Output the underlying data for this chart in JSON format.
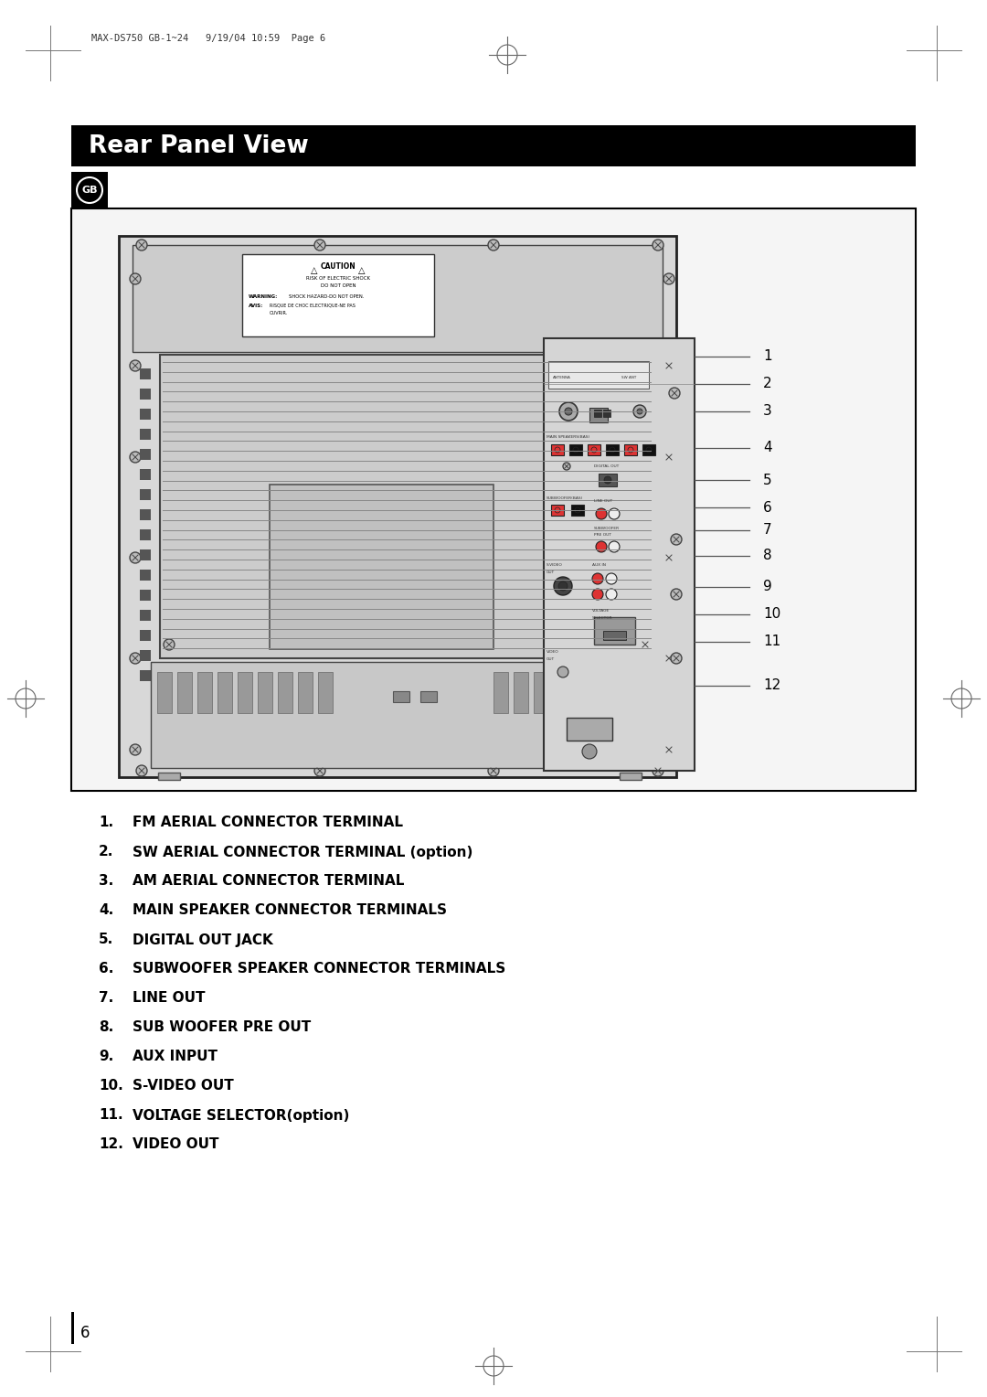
{
  "page_header": "MAX-DS750 GB-1~24   9/19/04 10:59  Page 6",
  "title": "Rear Panel View",
  "gb_label": "GB",
  "items": [
    {
      "num": "1.",
      "text": "FM AERIAL CONNECTOR TERMINAL",
      "extra": ""
    },
    {
      "num": "2.",
      "text": "SW AERIAL CONNECTOR TERMINAL (option)",
      "extra": ""
    },
    {
      "num": "3.",
      "text": "AM AERIAL CONNECTOR TERMINAL",
      "extra": ""
    },
    {
      "num": "4.",
      "text": "MAIN SPEAKER CONNECTOR TERMINALS",
      "extra": ""
    },
    {
      "num": "5.",
      "text": "DIGITAL OUT JACK",
      "extra": ""
    },
    {
      "num": "6.",
      "text": "SUBWOOFER SPEAKER CONNECTOR TERMINALS",
      "extra": ""
    },
    {
      "num": "7.",
      "text": "LINE OUT",
      "extra": ""
    },
    {
      "num": "8.",
      "text": "SUB WOOFER PRE OUT",
      "extra": ""
    },
    {
      "num": "9.",
      "text": "AUX INPUT",
      "extra": ""
    },
    {
      "num": "10.",
      "text": "S-VIDEO OUT",
      "extra": ""
    },
    {
      "num": "11.",
      "text": "VOLTAGE SELECTOR(option)",
      "extra": ""
    },
    {
      "num": "12.",
      "text": "VIDEO OUT",
      "extra": ""
    }
  ],
  "page_number": "6",
  "bg_color": "#ffffff",
  "title_bg": "#000000",
  "title_color": "#ffffff",
  "text_color": "#000000"
}
